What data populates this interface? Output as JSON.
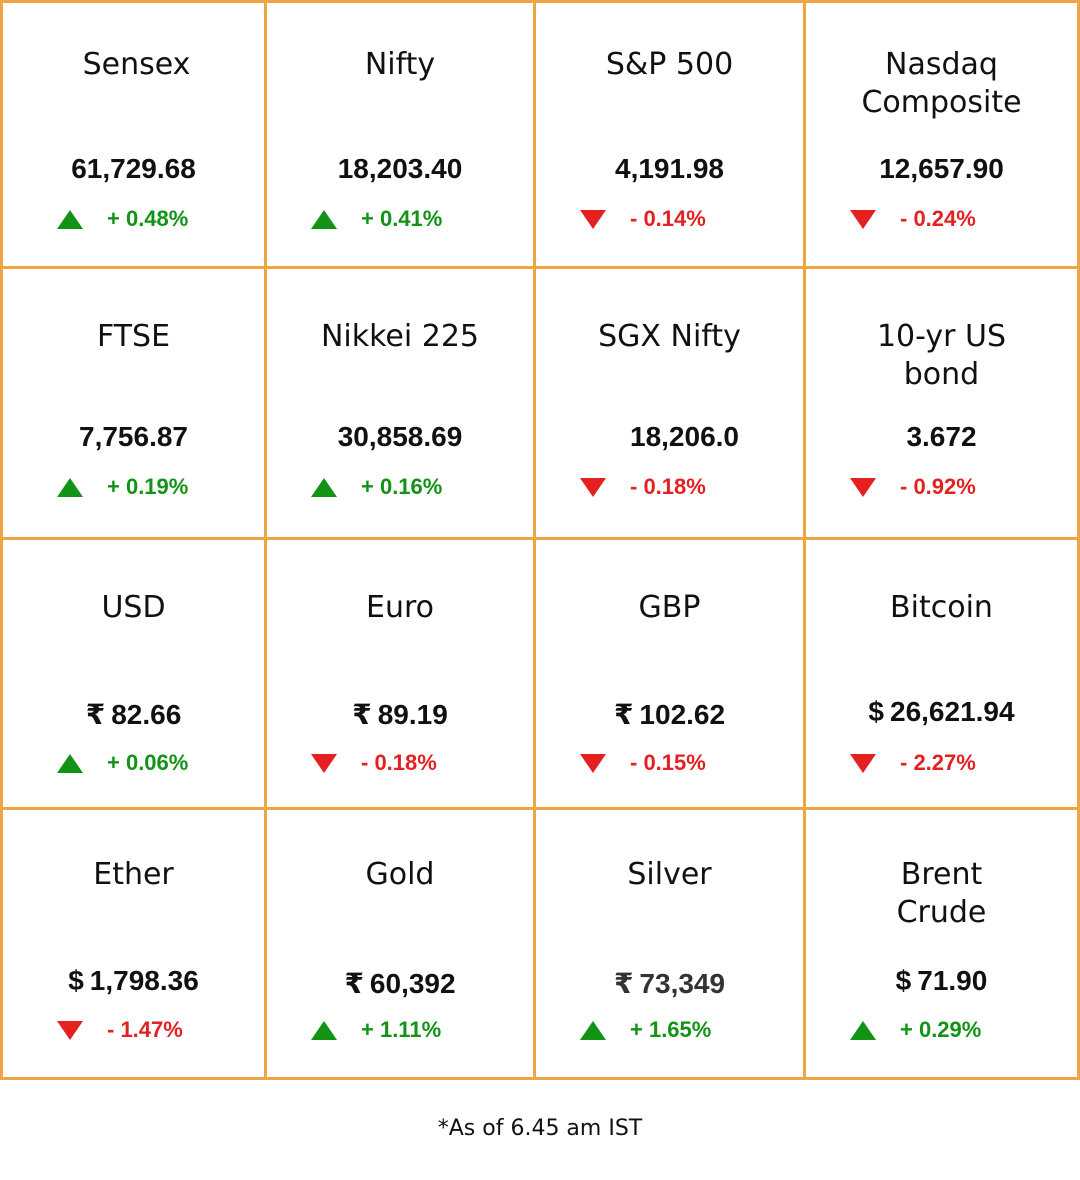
{
  "markets": [
    {
      "name": "Sensex",
      "currency": "",
      "value": "61,729.68",
      "direction": "up",
      "change": "+ 0.48%"
    },
    {
      "name": "Nifty",
      "currency": "",
      "value": "18,203.40",
      "direction": "up",
      "change": "+ 0.41%"
    },
    {
      "name": "S&P 500",
      "currency": "",
      "value": "4,191.98",
      "direction": "down",
      "change": "- 0.14%"
    },
    {
      "name": "Nasdaq Composite",
      "currency": "",
      "value": "12,657.90",
      "direction": "down",
      "change": "- 0.24%"
    },
    {
      "name": "FTSE",
      "currency": "",
      "value": "7,756.87",
      "direction": "up",
      "change": "+ 0.19%"
    },
    {
      "name": "Nikkei 225",
      "currency": "",
      "value": "30,858.69",
      "direction": "up",
      "change": "+ 0.16%"
    },
    {
      "name": "SGX Nifty",
      "currency": "",
      "value": "18,206.0",
      "direction": "down",
      "change": "- 0.18%"
    },
    {
      "name": "10-yr US bond",
      "currency": "",
      "value": "3.672",
      "direction": "down",
      "change": "- 0.92%"
    },
    {
      "name": "USD",
      "currency": "₹",
      "value": "82.66",
      "direction": "up",
      "change": "+ 0.06%"
    },
    {
      "name": "Euro",
      "currency": "₹",
      "value": "89.19",
      "direction": "down",
      "change": "- 0.18%"
    },
    {
      "name": "GBP",
      "currency": "₹",
      "value": "102.62",
      "direction": "down",
      "change": "- 0.15%"
    },
    {
      "name": "Bitcoin",
      "currency": "$",
      "value": "26,621.94",
      "direction": "down",
      "change": "- 2.27%"
    },
    {
      "name": "Ether",
      "currency": "$",
      "value": "1,798.36",
      "direction": "down",
      "change": "- 1.47%"
    },
    {
      "name": "Gold",
      "currency": "₹",
      "value": "60,392",
      "direction": "up",
      "change": "+ 1.11%"
    },
    {
      "name": "Silver",
      "currency": "₹",
      "value": "73,349",
      "direction": "up",
      "change": "+ 1.65%"
    },
    {
      "name": "Brent Crude",
      "currency": "$",
      "value": "71.90",
      "direction": "up",
      "change": "+ 0.29%"
    }
  ],
  "footnote": "*As of 6.45 am IST",
  "colors": {
    "border": "#f0a443",
    "up": "#129316",
    "down": "#e42020"
  }
}
